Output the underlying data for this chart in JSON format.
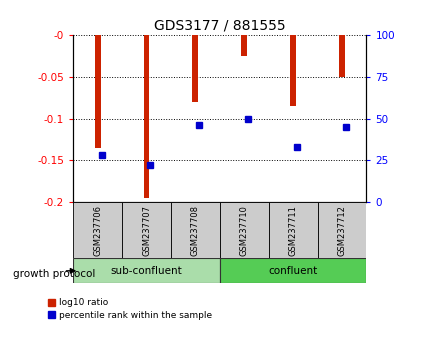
{
  "title": "GDS3177 / 881555",
  "categories": [
    "GSM237706",
    "GSM237707",
    "GSM237708",
    "GSM237710",
    "GSM237711",
    "GSM237712"
  ],
  "log10_ratio": [
    -0.135,
    -0.195,
    -0.08,
    -0.025,
    -0.085,
    -0.05
  ],
  "percentile_rank": [
    28,
    22,
    46,
    50,
    33,
    45
  ],
  "ylim_left": [
    -0.2,
    0.0
  ],
  "ylim_right": [
    0,
    100
  ],
  "yticks_left": [
    -0.2,
    -0.15,
    -0.1,
    -0.05,
    0.0
  ],
  "yticks_right": [
    0,
    25,
    50,
    75,
    100
  ],
  "bar_color": "#cc2200",
  "dot_color": "#0000cc",
  "group1_label": "sub-confluent",
  "group2_label": "confluent",
  "group1_color": "#aaddaa",
  "group2_color": "#55cc55",
  "xlabel_protocol": "growth protocol",
  "legend_ratio_label": "log10 ratio",
  "legend_pct_label": "percentile rank within the sample",
  "title_fontsize": 10,
  "tick_fontsize": 7.5,
  "bar_width": 0.12
}
